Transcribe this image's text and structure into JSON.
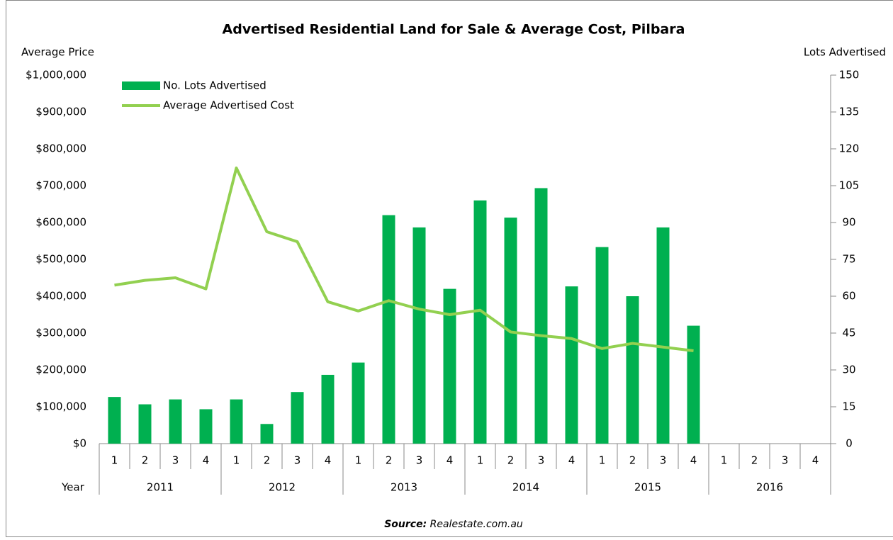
{
  "chart_data": {
    "type": "bar-line",
    "title": "Advertised Residential Land for Sale & Average Cost, Pilbara",
    "y_label": "Average Price",
    "y2_label": "Lots Advertised",
    "x_label": "Year",
    "categories": [
      "1",
      "2",
      "3",
      "4",
      "1",
      "2",
      "3",
      "4",
      "1",
      "2",
      "3",
      "4",
      "1",
      "2",
      "3",
      "4",
      "1",
      "2",
      "3",
      "4",
      "1",
      "2",
      "3",
      "4"
    ],
    "years": [
      "2011",
      "2012",
      "2013",
      "2014",
      "2015",
      "2016"
    ],
    "series": [
      {
        "name": "No. Lots Advertised",
        "kind": "bar",
        "axis": "y2",
        "color": "#00b050",
        "values": [
          19,
          16,
          18,
          14,
          18,
          8,
          21,
          28,
          33,
          93,
          88,
          63,
          99,
          92,
          104,
          64,
          80,
          60,
          88,
          48,
          null,
          null,
          null,
          null
        ]
      },
      {
        "name": "Average Advertised Cost",
        "kind": "line",
        "color": "#92d050",
        "values": [
          430000,
          443000,
          450000,
          420000,
          748000,
          575000,
          548000,
          385000,
          360000,
          388000,
          365000,
          350000,
          362000,
          303000,
          293000,
          285000,
          258000,
          272000,
          262000,
          252000,
          null,
          null,
          null,
          null
        ]
      }
    ],
    "ylim": [
      0,
      1000000
    ],
    "yticks": [
      {
        "value": 0,
        "label": "$0"
      },
      {
        "value": 100000,
        "label": "$100,000"
      },
      {
        "value": 200000,
        "label": "$200,000"
      },
      {
        "value": 300000,
        "label": "$300,000"
      },
      {
        "value": 400000,
        "label": "$400,000"
      },
      {
        "value": 500000,
        "label": "$500,000"
      },
      {
        "value": 600000,
        "label": "$600,000"
      },
      {
        "value": 700000,
        "label": "$700,000"
      },
      {
        "value": 800000,
        "label": "$800,000"
      },
      {
        "value": 900000,
        "label": "$900,000"
      },
      {
        "value": 1000000,
        "label": "$1,000,000"
      }
    ],
    "y2lim": [
      0,
      150
    ],
    "y2ticks": [
      0,
      15,
      30,
      45,
      60,
      75,
      90,
      105,
      120,
      135,
      150
    ],
    "legend": "upper-left",
    "source_label": "Source:",
    "source": "Realestate.com.au"
  }
}
